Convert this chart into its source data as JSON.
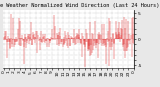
{
  "title": "Milwaukee Weather Normalized Wind Direction (Last 24 Hours)",
  "bg_color": "#e8e8e8",
  "plot_bg_color": "#ffffff",
  "line_color": "#dd0000",
  "grid_color": "#aaaaaa",
  "text_color": "#000000",
  "title_fontsize": 3.8,
  "tick_fontsize": 3.2,
  "ylim": [
    -5.5,
    5.5
  ],
  "n_points": 288,
  "seed": 42,
  "n_xticks": 25
}
